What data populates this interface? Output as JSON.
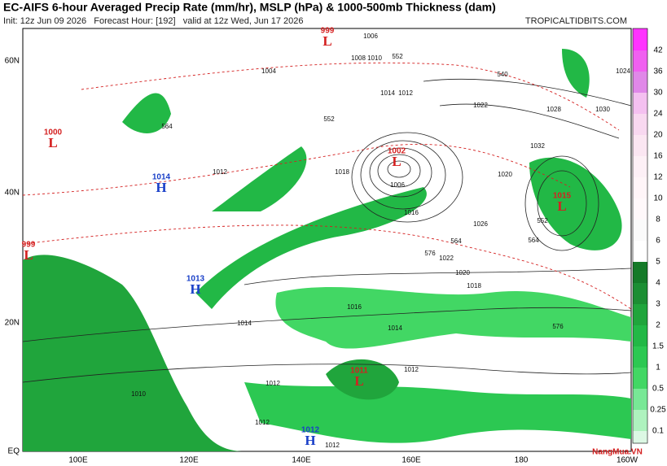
{
  "header": {
    "title": "EC-AIFS 6-hour Averaged Precip Rate (mm/hr), MSLP (hPa) & 1000-500mb Thickness (dam)",
    "subtitle": "Init: 12z Jun 09 2026   Forecast Hour: [192]   valid at 12z Wed, Jun 17 2026",
    "site": "TROPICALTIDBITS.COM"
  },
  "axes": {
    "lat": [
      "60N",
      "40N",
      "20N",
      "EQ"
    ],
    "lon": [
      "100E",
      "120E",
      "140E",
      "160E",
      "180",
      "160W"
    ]
  },
  "colorbar": {
    "labels": [
      42,
      36,
      30,
      24,
      20,
      16,
      12,
      10,
      8,
      6,
      5,
      4,
      3,
      2,
      1.5,
      1,
      0.5,
      0.25,
      0.1
    ],
    "colors": [
      "#ff33ff",
      "#f060f0",
      "#e088e8",
      "#f4c0f0",
      "#f8d8f0",
      "#fbe6f2",
      "#fdf0f6",
      "#fff5f8",
      "#fff8fa",
      "#fafafa",
      "#ffffff",
      "#157a28",
      "#1c8e33",
      "#20a53c",
      "#22b846",
      "#2cc852",
      "#42d764",
      "#78e896",
      "#aef2be",
      "#dcf8e4"
    ]
  },
  "centers": [
    {
      "letter": "L",
      "value": 999,
      "color": "#d42020"
    },
    {
      "letter": "L",
      "value": 1002,
      "color": "#d42020"
    },
    {
      "letter": "L",
      "value": 1015,
      "color": "#d42020"
    },
    {
      "letter": "L",
      "value": 1000,
      "color": "#d42020"
    },
    {
      "letter": "L",
      "value": 999,
      "color": "#d42020"
    },
    {
      "letter": "H",
      "value": 1014,
      "color": "#1a40c8"
    },
    {
      "letter": "H",
      "value": 1013,
      "color": "#1a40c8"
    },
    {
      "letter": "L",
      "value": 1011,
      "color": "#d42020"
    },
    {
      "letter": "H",
      "value": 1012,
      "color": "#1a40c8"
    }
  ],
  "isobar_labels": [
    1006,
    1008,
    1010,
    1004,
    1014,
    1012,
    1022,
    1028,
    1030,
    1032,
    1024,
    1020,
    1018,
    1016,
    1026,
    1006,
    1012,
    1014,
    1016,
    1018,
    1020,
    1022,
    1014,
    1012,
    1012,
    1010,
    1012,
    1012
  ],
  "thickness_labels": [
    552,
    564,
    576,
    564,
    552,
    540,
    576,
    564,
    552
  ],
  "watermark": "NangMua.VN"
}
